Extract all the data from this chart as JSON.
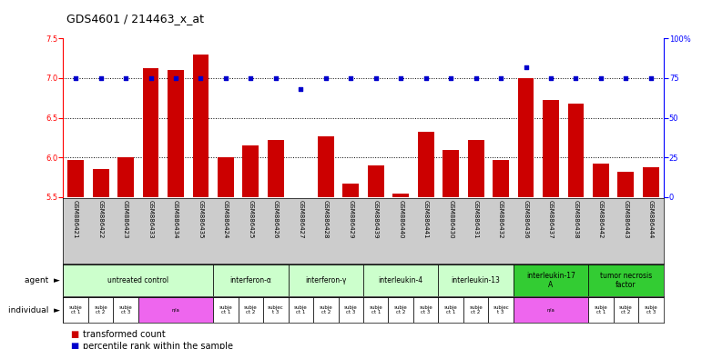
{
  "title": "GDS4601 / 214463_x_at",
  "samples": [
    "GSM886421",
    "GSM886422",
    "GSM886423",
    "GSM886433",
    "GSM886434",
    "GSM886435",
    "GSM886424",
    "GSM886425",
    "GSM886426",
    "GSM886427",
    "GSM886428",
    "GSM886429",
    "GSM886439",
    "GSM886440",
    "GSM886441",
    "GSM886430",
    "GSM886431",
    "GSM886432",
    "GSM886436",
    "GSM886437",
    "GSM886438",
    "GSM886442",
    "GSM886443",
    "GSM886444"
  ],
  "red_values": [
    5.97,
    5.85,
    6.0,
    7.12,
    7.1,
    7.3,
    6.0,
    6.15,
    6.22,
    5.5,
    6.27,
    5.67,
    5.9,
    5.55,
    6.32,
    6.1,
    6.22,
    5.97,
    7.0,
    6.72,
    6.68,
    5.92,
    5.82,
    5.88
  ],
  "blue_values": [
    75,
    75,
    75,
    75,
    75,
    75,
    75,
    75,
    75,
    68,
    75,
    75,
    75,
    75,
    75,
    75,
    75,
    75,
    82,
    75,
    75,
    75,
    75,
    75
  ],
  "ylim_left": [
    5.5,
    7.5
  ],
  "ylim_right": [
    0,
    100
  ],
  "yticks_left": [
    5.5,
    6.0,
    6.5,
    7.0,
    7.5
  ],
  "yticks_right": [
    0,
    25,
    50,
    75,
    100
  ],
  "ytick_labels_right": [
    "0",
    "25",
    "50",
    "75",
    "100%"
  ],
  "hlines": [
    6.0,
    6.5,
    7.0
  ],
  "agent_groups": [
    {
      "label": "untreated control",
      "start": 0,
      "end": 6,
      "color": "#ccffcc"
    },
    {
      "label": "interferon-α",
      "start": 6,
      "end": 9,
      "color": "#ccffcc"
    },
    {
      "label": "interferon-γ",
      "start": 9,
      "end": 12,
      "color": "#ccffcc"
    },
    {
      "label": "interleukin-4",
      "start": 12,
      "end": 15,
      "color": "#ccffcc"
    },
    {
      "label": "interleukin-13",
      "start": 15,
      "end": 18,
      "color": "#ccffcc"
    },
    {
      "label": "interleukin-17\nA",
      "start": 18,
      "end": 21,
      "color": "#33cc33"
    },
    {
      "label": "tumor necrosis\nfactor",
      "start": 21,
      "end": 24,
      "color": "#33cc33"
    }
  ],
  "individual_groups": [
    {
      "label": "subje\nct 1",
      "start": 0,
      "end": 1,
      "color": "#ffffff"
    },
    {
      "label": "subje\nct 2",
      "start": 1,
      "end": 2,
      "color": "#ffffff"
    },
    {
      "label": "subje\nct 3",
      "start": 2,
      "end": 3,
      "color": "#ffffff"
    },
    {
      "label": "n/a",
      "start": 3,
      "end": 6,
      "color": "#ee66ee"
    },
    {
      "label": "subje\nct 1",
      "start": 6,
      "end": 7,
      "color": "#ffffff"
    },
    {
      "label": "subje\nct 2",
      "start": 7,
      "end": 8,
      "color": "#ffffff"
    },
    {
      "label": "subjec\nt 3",
      "start": 8,
      "end": 9,
      "color": "#ffffff"
    },
    {
      "label": "subje\nct 1",
      "start": 9,
      "end": 10,
      "color": "#ffffff"
    },
    {
      "label": "subje\nct 2",
      "start": 10,
      "end": 11,
      "color": "#ffffff"
    },
    {
      "label": "subje\nct 3",
      "start": 11,
      "end": 12,
      "color": "#ffffff"
    },
    {
      "label": "subje\nct 1",
      "start": 12,
      "end": 13,
      "color": "#ffffff"
    },
    {
      "label": "subje\nct 2",
      "start": 13,
      "end": 14,
      "color": "#ffffff"
    },
    {
      "label": "subje\nct 3",
      "start": 14,
      "end": 15,
      "color": "#ffffff"
    },
    {
      "label": "subje\nct 1",
      "start": 15,
      "end": 16,
      "color": "#ffffff"
    },
    {
      "label": "subje\nct 2",
      "start": 16,
      "end": 17,
      "color": "#ffffff"
    },
    {
      "label": "subjec\nt 3",
      "start": 17,
      "end": 18,
      "color": "#ffffff"
    },
    {
      "label": "n/a",
      "start": 18,
      "end": 21,
      "color": "#ee66ee"
    },
    {
      "label": "subje\nct 1",
      "start": 21,
      "end": 22,
      "color": "#ffffff"
    },
    {
      "label": "subje\nct 2",
      "start": 22,
      "end": 23,
      "color": "#ffffff"
    },
    {
      "label": "subje\nct 3",
      "start": 23,
      "end": 24,
      "color": "#ffffff"
    }
  ],
  "bar_color": "#cc0000",
  "dot_color": "#0000cc",
  "background_color": "#ffffff",
  "title_fontsize": 9,
  "tick_fontsize": 6,
  "sample_fontsize": 5,
  "row_fontsize": 5.5,
  "legend_fontsize": 7
}
